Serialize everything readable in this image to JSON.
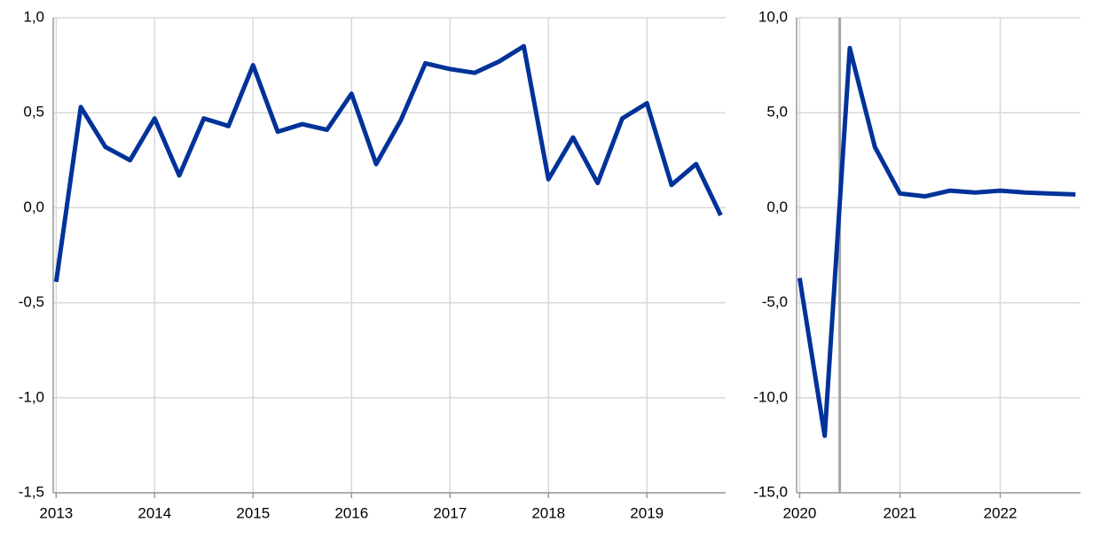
{
  "chart_data": [
    {
      "type": "line",
      "x": [
        2013,
        2013.25,
        2013.5,
        2013.75,
        2014,
        2014.25,
        2014.5,
        2014.75,
        2015,
        2015.25,
        2015.5,
        2015.75,
        2016,
        2016.25,
        2016.5,
        2016.75,
        2017,
        2017.25,
        2017.5,
        2017.75,
        2018,
        2018.25,
        2018.5,
        2018.75,
        2019,
        2019.25,
        2019.5,
        2019.75
      ],
      "series": [
        {
          "color": "#003299",
          "values": [
            -0.39,
            0.53,
            0.32,
            0.25,
            0.47,
            0.17,
            0.47,
            0.43,
            0.75,
            0.4,
            0.44,
            0.41,
            0.6,
            0.23,
            0.46,
            0.76,
            0.73,
            0.71,
            0.77,
            0.85,
            0.15,
            0.37,
            0.13,
            0.47,
            0.55,
            0.12,
            0.23,
            -0.04
          ]
        }
      ],
      "xlim": [
        2012.97,
        2019.8
      ],
      "xticks": [
        2013,
        2014,
        2015,
        2016,
        2017,
        2018,
        2019
      ],
      "ylim": [
        -1.5,
        1.0
      ],
      "yticks": [
        {
          "value": -1.5,
          "label": "-1,5"
        },
        {
          "value": -1.0,
          "label": "-1,0"
        },
        {
          "value": -0.5,
          "label": "-0,5"
        },
        {
          "value": 0,
          "label": "0,0"
        },
        {
          "value": 0.5,
          "label": "0,5"
        },
        {
          "value": 1.0,
          "label": "1,0"
        }
      ],
      "grid": true
    },
    {
      "type": "line",
      "x": [
        2020,
        2020.25,
        2020.5,
        2020.75,
        2021,
        2021.25,
        2021.5,
        2021.75,
        2022,
        2022.25,
        2022.5,
        2022.75
      ],
      "series": [
        {
          "color": "#003299",
          "values": [
            -3.7,
            -12.0,
            8.4,
            3.2,
            0.75,
            0.6,
            0.9,
            0.8,
            0.9,
            0.8,
            0.75,
            0.7
          ]
        }
      ],
      "xlim": [
        2019.97,
        2022.8
      ],
      "xticks": [
        2020,
        2021,
        2022
      ],
      "ylim": [
        -15,
        10
      ],
      "yticks": [
        {
          "value": -15,
          "label": "-15,0"
        },
        {
          "value": -10,
          "label": "-10,0"
        },
        {
          "value": -5,
          "label": "-5,0"
        },
        {
          "value": 0,
          "label": "0,0"
        },
        {
          "value": 5,
          "label": "5,0"
        },
        {
          "value": 10,
          "label": "10,0"
        }
      ],
      "grid": true,
      "vline": 2020.4
    }
  ]
}
